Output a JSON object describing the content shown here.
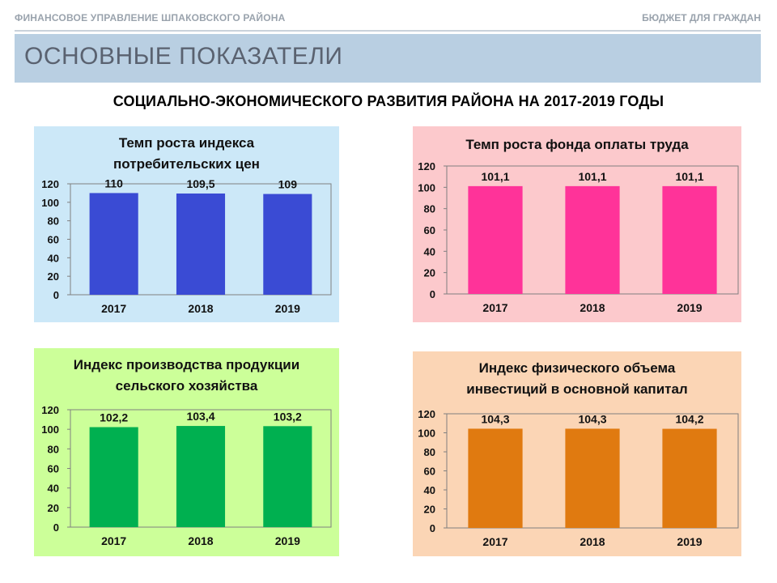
{
  "header": {
    "left": "ФИНАНСОВОЕ УПРАВЛЕНИЕ ШПАКОВСКОГО РАЙОНА",
    "right": "БЮДЖЕТ ДЛЯ ГРАЖДАН"
  },
  "banner": {
    "title": "ОСНОВНЫЕ ПОКАЗАТЕЛИ"
  },
  "subtitle": "СОЦИАЛЬНО-ЭКОНОМИЧЕСКОГО  РАЗВИТИЯ РАЙОНА НА 2017-2019 ГОДЫ",
  "chart_data": [
    {
      "type": "bar",
      "title_lines": [
        "Темп роста индекса",
        "потребительских цен"
      ],
      "categories": [
        "2017",
        "2018",
        "2019"
      ],
      "values": [
        110,
        109.5,
        109
      ],
      "labels": [
        "110",
        "109,5",
        "109"
      ],
      "yticks": [
        "0",
        "20",
        "40",
        "60",
        "80",
        "100",
        "120"
      ],
      "ylim": [
        0,
        120
      ],
      "bg_color": "#cce8f8",
      "bar_color": "#3a4bd4"
    },
    {
      "type": "bar",
      "title_lines": [
        "Темп роста фонда оплаты труда"
      ],
      "categories": [
        "2017",
        "2018",
        "2019"
      ],
      "values": [
        101.1,
        101.1,
        101.1
      ],
      "labels": [
        "101,1",
        "101,1",
        "101,1"
      ],
      "yticks": [
        "0",
        "20",
        "40",
        "60",
        "80",
        "100",
        "120"
      ],
      "ylim": [
        0,
        120
      ],
      "bg_color": "#fcc9cc",
      "bar_color": "#ff3399"
    },
    {
      "type": "bar",
      "title_lines": [
        "Индекс производства продукции",
        "сельского хозяйства"
      ],
      "categories": [
        "2017",
        "2018",
        "2019"
      ],
      "values": [
        102.2,
        103.4,
        103.2
      ],
      "labels": [
        "102,2",
        "103,4",
        "103,2"
      ],
      "yticks": [
        "0",
        "20",
        "40",
        "60",
        "80",
        "100",
        "120"
      ],
      "ylim": [
        0,
        120
      ],
      "bg_color": "#ccff99",
      "bar_color": "#00b050"
    },
    {
      "type": "bar",
      "title_lines": [
        "Индекс  физического объема",
        "инвестиций в основной капитал"
      ],
      "categories": [
        "2017",
        "2018",
        "2019"
      ],
      "values": [
        104.3,
        104.3,
        104.2
      ],
      "labels": [
        "104,3",
        "104,3",
        "104,2"
      ],
      "yticks": [
        "0",
        "20",
        "40",
        "60",
        "80",
        "100",
        "120"
      ],
      "ylim": [
        0,
        120
      ],
      "bg_color": "#fbd5b5",
      "bar_color": "#e07a10"
    }
  ]
}
